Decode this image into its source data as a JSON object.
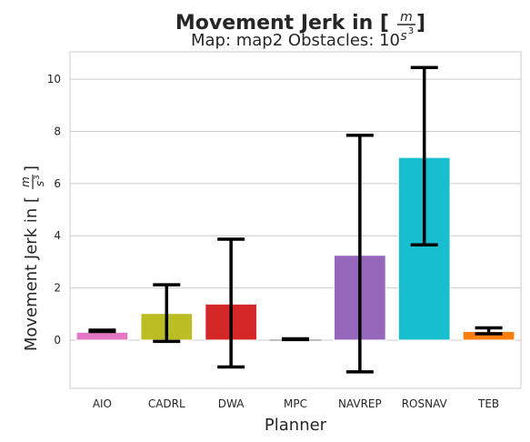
{
  "chart_data": {
    "type": "bar",
    "title": "Movement Jerk in [m/s³]",
    "title_main": "Movement Jerk in [",
    "title_num": "m",
    "title_den": "s",
    "title_exp": "3",
    "title_close": "]",
    "subtitle": "Map: map2 Obstacles: 10",
    "xlabel": "Planner",
    "ylabel": "Movement Jerk in [m/s³]",
    "ylabel_main": "Movement Jerk in [",
    "ylabel_num": "m",
    "ylabel_den": "s",
    "ylabel_exp": "3",
    "ylabel_close": "]",
    "categories": [
      "AIO",
      "CADRL",
      "DWA",
      "MPC",
      "NAVREP",
      "ROSNAV",
      "TEB"
    ],
    "values": [
      0.3,
      1.02,
      1.38,
      0.0,
      3.25,
      7.0,
      0.33
    ],
    "error_low": [
      0.33,
      -0.05,
      -1.03,
      0.02,
      -1.22,
      3.65,
      0.24
    ],
    "error_high": [
      0.38,
      2.12,
      3.87,
      0.05,
      7.85,
      10.45,
      0.47
    ],
    "colors": [
      "#e377c2",
      "#bcbd22",
      "#d62728",
      "#7f7f7f",
      "#9467bd",
      "#17becf",
      "#ff7f0e"
    ],
    "yticks": [
      0,
      2,
      4,
      6,
      8,
      10
    ],
    "ylim": [
      -1.85,
      11.05
    ],
    "grid": "y"
  }
}
